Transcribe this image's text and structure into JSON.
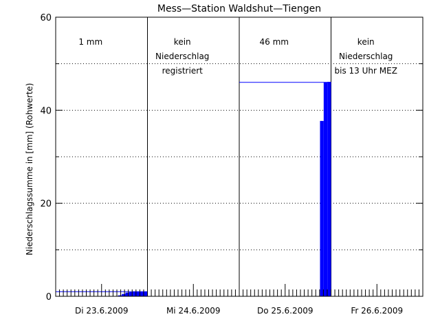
{
  "chart_data": {
    "type": "bar",
    "title": "Mess—Station Waldshut—Tiengen",
    "ylabel": "Niederschlagssumme in [mm] (Rohwerte)",
    "xlabel": "",
    "ylim": [
      0,
      60
    ],
    "yticks": [
      0,
      20,
      40,
      60
    ],
    "ytick_labels": [
      "0",
      "20",
      "40",
      "60"
    ],
    "x_range_days": [
      0,
      4
    ],
    "days": [
      {
        "label": "Di 23.6.2009"
      },
      {
        "label": "Mi 24.6.2009"
      },
      {
        "label": "Do 25.6.2009"
      },
      {
        "label": "Fr 26.6.2009"
      }
    ],
    "grid": "horizontal dotted at 10 mm steps",
    "annotations": [
      {
        "day": 0,
        "lines": [
          "1 mm"
        ]
      },
      {
        "day": 1,
        "lines": [
          "kein",
          "Niederschlag",
          "registriert"
        ]
      },
      {
        "day": 2,
        "lines": [
          "46 mm"
        ]
      },
      {
        "day": 3,
        "lines": [
          "kein",
          "Niederschlag",
          "bis 13 Uhr MEZ"
        ]
      }
    ],
    "daily_totals": [
      {
        "day": 0,
        "value": 1
      },
      {
        "day": 2,
        "value": 46
      }
    ],
    "series": [
      {
        "values": [
          {
            "x": 0.68,
            "y": 0.2
          },
          {
            "x": 0.72,
            "y": 0.5
          },
          {
            "x": 0.76,
            "y": 0.8
          },
          {
            "x": 0.8,
            "y": 0.9
          },
          {
            "x": 0.84,
            "y": 1.0
          },
          {
            "x": 0.88,
            "y": 1.0
          },
          {
            "x": 0.92,
            "y": 1.0
          },
          {
            "x": 0.96,
            "y": 1.0
          },
          {
            "x": 2.88,
            "y": 37.7
          },
          {
            "x": 2.92,
            "y": 46.0
          },
          {
            "x": 2.96,
            "y": 46.1
          }
        ]
      }
    ],
    "colors": {
      "bars": "#0000ff",
      "total_line": "#0000ff",
      "axes": "#000000"
    }
  }
}
